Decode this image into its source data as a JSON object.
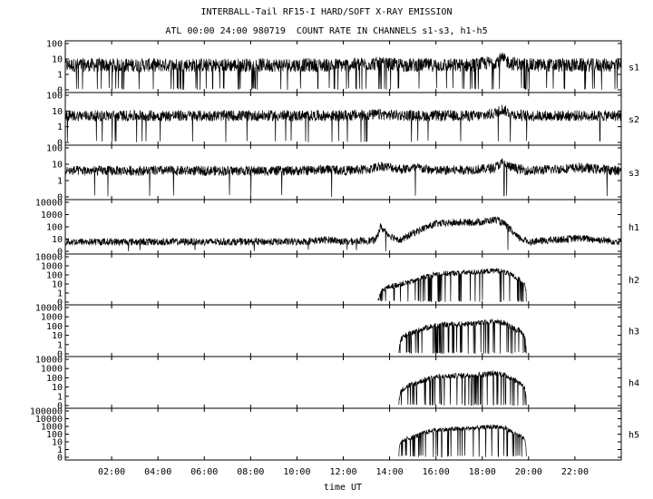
{
  "titles": {
    "line1": "INTERBALL-Tail RF15-I HARD/SOFT X-RAY EMISSION",
    "line2": "ATL 00:00 24:00 980719  COUNT RATE IN CHANNELS s1-s3, h1-h5"
  },
  "chart_data": {
    "type": "line",
    "title": "INTERBALL-Tail RF15-I HARD/SOFT X-RAY EMISSION",
    "subtitle": "ATL 00:00 24:00 980719  COUNT RATE IN CHANNELS s1-s3, h1-h5",
    "xlabel": "time UT",
    "x_unit": "hours UT",
    "xlim": [
      0,
      24
    ],
    "x_ticks": [
      {
        "hour": 2,
        "label": "02:00"
      },
      {
        "hour": 4,
        "label": "04:00"
      },
      {
        "hour": 6,
        "label": "06:00"
      },
      {
        "hour": 8,
        "label": "08:00"
      },
      {
        "hour": 10,
        "label": "10:00"
      },
      {
        "hour": 12,
        "label": "12:00"
      },
      {
        "hour": 14,
        "label": "14:00"
      },
      {
        "hour": 16,
        "label": "16:00"
      },
      {
        "hour": 18,
        "label": "18:00"
      },
      {
        "hour": 20,
        "label": "20:00"
      },
      {
        "hour": 22,
        "label": "22:00"
      }
    ],
    "y_scale": "log",
    "grid": false,
    "panels": [
      {
        "name": "s1",
        "ylim": [
          0,
          100
        ],
        "y_ticks": [
          {
            "value": 100,
            "label": "100"
          },
          {
            "value": 10,
            "label": "10"
          },
          {
            "value": 1,
            "label": "1"
          },
          {
            "value": 0,
            "label": "0"
          }
        ],
        "hours": [
          0,
          2,
          4,
          6,
          8,
          10,
          12,
          13.3,
          14.5,
          16,
          17.5,
          18.5,
          18.85,
          19.3,
          20,
          22,
          24
        ],
        "values": [
          4,
          4,
          4,
          4,
          4,
          4,
          4,
          5,
          4,
          4,
          4,
          6,
          10,
          5,
          4,
          4,
          4
        ],
        "noise": 0.45,
        "dropouts": 0.06
      },
      {
        "name": "s2",
        "ylim": [
          0,
          100
        ],
        "y_ticks": [
          {
            "value": 100,
            "label": "100"
          },
          {
            "value": 10,
            "label": "10"
          },
          {
            "value": 1,
            "label": "1"
          },
          {
            "value": 0,
            "label": "0"
          }
        ],
        "hours": [
          0,
          2,
          4,
          6,
          8,
          10,
          12,
          13.5,
          15,
          16.5,
          18,
          18.5,
          18.85,
          19.3,
          20,
          22,
          24
        ],
        "values": [
          5,
          5,
          5,
          5,
          5,
          5,
          5,
          6,
          5,
          5,
          5,
          7,
          13,
          6,
          5,
          5,
          5
        ],
        "noise": 0.35,
        "dropouts": 0.015
      },
      {
        "name": "s3",
        "ylim": [
          0,
          100
        ],
        "y_ticks": [
          {
            "value": 100,
            "label": "100"
          },
          {
            "value": 10,
            "label": "10"
          },
          {
            "value": 1,
            "label": "1"
          },
          {
            "value": 0,
            "label": "0"
          }
        ],
        "hours": [
          0,
          2,
          4,
          6,
          8,
          10,
          11.5,
          12,
          13.2,
          13.6,
          14.5,
          15.2,
          16,
          18,
          18.5,
          18.85,
          19.3,
          20,
          22.2,
          24
        ],
        "values": [
          4,
          4,
          4,
          4,
          4,
          4,
          5,
          4,
          5,
          8,
          5,
          6,
          4,
          5,
          6,
          12,
          6,
          4,
          6,
          4
        ],
        "noise": 0.3,
        "dropouts": 0.005
      },
      {
        "name": "h1",
        "ylim": [
          0,
          10000
        ],
        "y_ticks": [
          {
            "value": 10000,
            "label": "10000"
          },
          {
            "value": 1000,
            "label": "1000"
          },
          {
            "value": 100,
            "label": "100"
          },
          {
            "value": 10,
            "label": "10"
          },
          {
            "value": 0,
            "label": "0"
          }
        ],
        "hours": [
          0,
          2,
          4,
          6,
          8,
          10,
          11.5,
          12,
          13.4,
          13.6,
          14,
          14.5,
          15,
          15.5,
          16,
          17,
          18,
          18.6,
          19,
          19.5,
          20,
          22.2,
          24
        ],
        "values": [
          6,
          6,
          6,
          6,
          6,
          6,
          9,
          6,
          8,
          100,
          20,
          8,
          30,
          80,
          180,
          220,
          250,
          400,
          150,
          15,
          6,
          12,
          6
        ],
        "noise": 0.3,
        "dropouts": 0.003
      },
      {
        "name": "h2",
        "ylim": [
          0,
          10000
        ],
        "y_ticks": [
          {
            "value": 10000,
            "label": "10000"
          },
          {
            "value": 1000,
            "label": "1000"
          },
          {
            "value": 100,
            "label": "100"
          },
          {
            "value": 10,
            "label": "10"
          },
          {
            "value": 1,
            "label": "1"
          },
          {
            "value": 0,
            "label": "0"
          }
        ],
        "hours": [
          13.5,
          14,
          15,
          15.5,
          16,
          17,
          18,
          18.6,
          19,
          19.5,
          19.9
        ],
        "values": [
          0,
          5,
          20,
          60,
          120,
          170,
          220,
          320,
          200,
          40,
          0
        ],
        "noise": 0.3,
        "dropouts": 0.12
      },
      {
        "name": "h3",
        "ylim": [
          0,
          10000
        ],
        "y_ticks": [
          {
            "value": 10000,
            "label": "10000"
          },
          {
            "value": 1000,
            "label": "1000"
          },
          {
            "value": 100,
            "label": "100"
          },
          {
            "value": 10,
            "label": "10"
          },
          {
            "value": 1,
            "label": "1"
          },
          {
            "value": 0,
            "label": "0"
          }
        ],
        "hours": [
          14.4,
          15,
          15.5,
          16,
          17,
          18,
          18.6,
          19,
          19.5,
          19.9
        ],
        "values": [
          0,
          20,
          60,
          120,
          170,
          220,
          320,
          200,
          40,
          0
        ],
        "noise": 0.3,
        "dropouts": 0.12
      },
      {
        "name": "h4",
        "ylim": [
          0,
          10000
        ],
        "y_ticks": [
          {
            "value": 10000,
            "label": "10000"
          },
          {
            "value": 1000,
            "label": "1000"
          },
          {
            "value": 100,
            "label": "100"
          },
          {
            "value": 10,
            "label": "10"
          },
          {
            "value": 1,
            "label": "1"
          },
          {
            "value": 0,
            "label": "0"
          }
        ],
        "hours": [
          14.4,
          15,
          15.5,
          16,
          17,
          18,
          18.6,
          19,
          19.5,
          19.9
        ],
        "values": [
          0,
          20,
          60,
          120,
          170,
          220,
          320,
          200,
          40,
          0
        ],
        "noise": 0.3,
        "dropouts": 0.12
      },
      {
        "name": "h5",
        "ylim": [
          0,
          100000
        ],
        "y_ticks": [
          {
            "value": 100000,
            "label": "100000"
          },
          {
            "value": 10000,
            "label": "10000"
          },
          {
            "value": 1000,
            "label": "1000"
          },
          {
            "value": 100,
            "label": "100"
          },
          {
            "value": 10,
            "label": "10"
          },
          {
            "value": 1,
            "label": "1"
          },
          {
            "value": 0,
            "label": "0"
          }
        ],
        "hours": [
          14.4,
          15,
          15.5,
          16,
          17,
          18,
          18.6,
          19,
          19.5,
          19.9
        ],
        "values": [
          0,
          40,
          150,
          350,
          500,
          700,
          1000,
          600,
          80,
          0
        ],
        "noise": 0.3,
        "dropouts": 0.12
      }
    ]
  }
}
